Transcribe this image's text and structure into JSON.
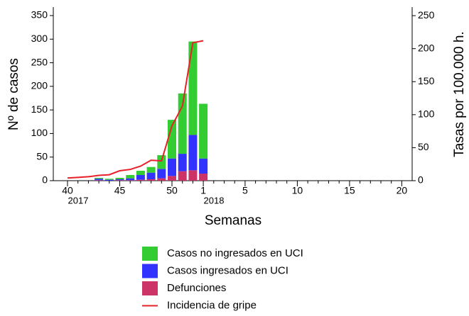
{
  "chart_data": {
    "type": "bar",
    "y_label": "Nº de casos",
    "y2_label": "Tasas por 100.000 h.",
    "x_label": "Semanas",
    "x_sublabels": [
      "2017",
      "2018"
    ],
    "categories": [
      "40",
      null,
      null,
      null,
      null,
      "45",
      null,
      null,
      null,
      null,
      "50",
      null,
      null,
      "1",
      null,
      null,
      null,
      "5",
      null,
      null,
      null,
      null,
      "10",
      null,
      null,
      null,
      null,
      "15",
      null,
      null,
      null,
      null,
      "20"
    ],
    "series": [
      {
        "name": "Casos no ingresados en UCI",
        "color": "#33cc33",
        "values": [
          null,
          null,
          null,
          2,
          2,
          3,
          7,
          9,
          12,
          29,
          82,
          128,
          198,
          116,
          null,
          null,
          null,
          null,
          null,
          null,
          null,
          null,
          null,
          null,
          null,
          null,
          null,
          null,
          null,
          null,
          null,
          null,
          null
        ]
      },
      {
        "name": "Casos ingresados en UCI",
        "color": "#3333ff",
        "values": [
          null,
          null,
          null,
          3,
          2,
          2,
          4,
          10,
          14,
          20,
          37,
          37,
          75,
          32,
          null,
          null,
          null,
          null,
          null,
          null,
          null,
          null,
          null,
          null,
          null,
          null,
          null,
          null,
          null,
          null,
          null,
          null,
          null
        ]
      },
      {
        "name": "Defunciones",
        "color": "#cc3366",
        "values": [
          null,
          null,
          null,
          1,
          0,
          1,
          1,
          2,
          3,
          5,
          10,
          20,
          22,
          15,
          null,
          null,
          null,
          null,
          null,
          null,
          null,
          null,
          null,
          null,
          null,
          null,
          null,
          null,
          null,
          null,
          null,
          null,
          null
        ]
      },
      {
        "name": "Incidencia de gripe",
        "color": "#e8202a",
        "type": "line",
        "axis": "y2",
        "values": [
          4,
          5,
          6,
          8,
          9,
          15,
          17,
          22,
          31,
          30,
          83,
          113,
          209,
          212,
          null,
          null,
          null,
          null,
          null,
          null,
          null,
          null,
          null,
          null,
          null,
          null,
          null,
          null,
          null,
          null,
          null,
          null,
          null
        ]
      }
    ],
    "ylim": [
      0,
      368
    ],
    "yticks": [
      0,
      50,
      100,
      150,
      200,
      250,
      300,
      350
    ],
    "y2lim": [
      0,
      263
    ],
    "y2ticks": [
      0,
      50,
      100,
      150,
      200,
      250
    ]
  }
}
